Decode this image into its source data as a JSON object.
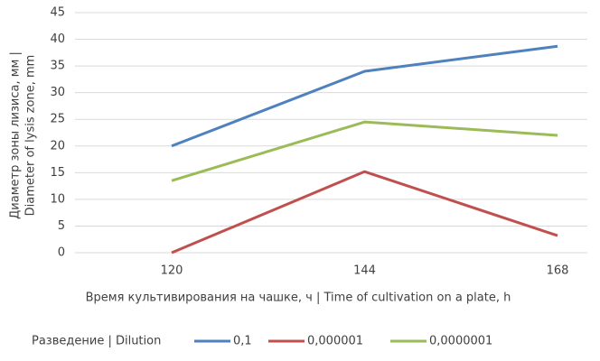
{
  "chart_data": {
    "type": "line",
    "y_label": [
      "Диаметр зоны лизиса, мм |",
      "Diameter of lysis zone, mm"
    ],
    "x_label": "Время культивирования на чашке, ч | Time of cultivation on a plate, h",
    "legend_title": "Разведение | Dilution",
    "categories": [
      "120",
      "144",
      "168"
    ],
    "series": [
      {
        "name": "0,1",
        "color": "#4f81bd",
        "values": [
          20,
          34,
          38.7
        ]
      },
      {
        "name": "0,000001",
        "color": "#c0504d",
        "values": [
          0,
          15.2,
          3.2
        ]
      },
      {
        "name": "0,0000001",
        "color": "#9bbb59",
        "values": [
          13.5,
          24.5,
          22
        ]
      }
    ],
    "ylim": [
      0,
      45
    ],
    "yticks": [
      0,
      5,
      10,
      15,
      20,
      25,
      30,
      35,
      40,
      45
    ],
    "grid": true,
    "legend": "bottom"
  }
}
